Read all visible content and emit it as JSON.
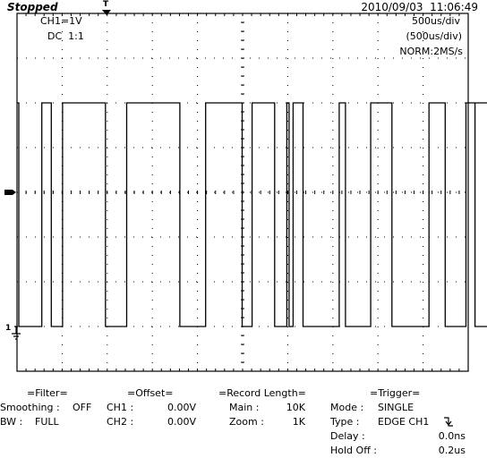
{
  "header": {
    "status": "Stopped",
    "datetime": "2010/09/03  11:06:49",
    "ch1_scale": "CH1=1V",
    "coupling": "DC  1:1",
    "timebase": "500us/div",
    "timebase_sub": "(500us/div)",
    "acq_mode": "NORM:2MS/s",
    "trigger_marker": "T",
    "ch1_marker": "1"
  },
  "waveform": {
    "high_level_div": 2,
    "low_level_div": -3,
    "transitions_div": [
      0.04,
      0.55,
      0.76,
      1.01,
      1.96,
      2.43,
      3.61,
      4.18,
      4.99,
      5.21,
      5.71,
      5.98,
      6.03,
      6.12,
      6.34,
      7.14,
      7.28,
      7.84,
      8.31,
      9.13,
      9.49,
      9.95,
      10.15,
      10.6
    ]
  },
  "settings": {
    "filter": {
      "title": "=Filter=",
      "smoothing_label": "Smoothing :",
      "smoothing_value": "OFF",
      "bw_label": "BW :",
      "bw_value": "FULL"
    },
    "offset": {
      "title": "=Offset=",
      "ch1_label": "CH1 :",
      "ch1_value": "0.00V",
      "ch2_label": "CH2 :",
      "ch2_value": "0.00V"
    },
    "record": {
      "title": "=Record Length=",
      "main_label": "Main :",
      "main_value": "10K",
      "zoom_label": "Zoom :",
      "zoom_value": "1K"
    },
    "trigger": {
      "title": "=Trigger=",
      "mode_label": "Mode :",
      "mode_value": "SINGLE",
      "type_label": "Type :",
      "type_value": "EDGE CH1",
      "delay_label": "Delay :",
      "delay_value": "0.0ns",
      "holdoff_label": "Hold Off :",
      "holdoff_value": "0.2us"
    }
  }
}
